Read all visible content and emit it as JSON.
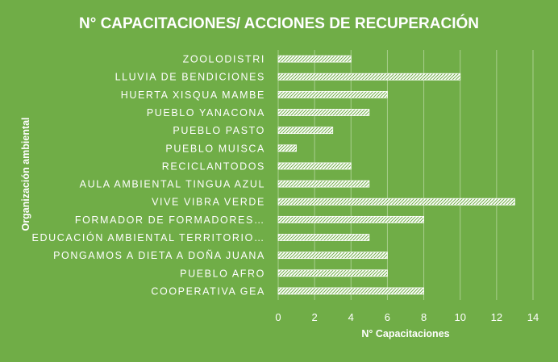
{
  "chart_data": {
    "type": "bar",
    "orientation": "horizontal",
    "title": "N° CAPACITACIONES/ ACCIONES DE RECUPERACIÓN",
    "xlabel": "N° Capacitaciones",
    "ylabel": "Organización ambiental",
    "categories": [
      "COOPERATIVA GEA",
      "PUEBLO AFRO",
      "PONGAMOS A DIETA A DOÑA JUANA",
      "EDUCACIÓN AMBIENTAL TERRITORIO…",
      "FORMADOR DE FORMADORES…",
      "VIVE VIBRA VERDE",
      "AULA AMBIENTAL TINGUA AZUL",
      "RECICLANTODOS",
      "PUEBLO MUISCA",
      "PUEBLO PASTO",
      "PUEBLO YANACONA",
      "HUERTA XISQUA MAMBE",
      "LLUVIA DE BENDICIONES",
      "ZOOLODISTRI"
    ],
    "values": [
      8,
      6,
      6,
      5,
      8,
      13,
      5,
      4,
      1,
      3,
      5,
      6,
      10,
      4
    ],
    "xlim": [
      0,
      14
    ],
    "xticks": [
      0,
      2,
      4,
      6,
      8,
      10,
      12,
      14
    ],
    "grid": "vertical",
    "legend": "none",
    "colors": {
      "background": "#70ad47",
      "bar_fill": "#ffffff",
      "bar_hatch": "#70ad47",
      "gridline": "#a9cf8e",
      "text": "#ffffff"
    }
  }
}
